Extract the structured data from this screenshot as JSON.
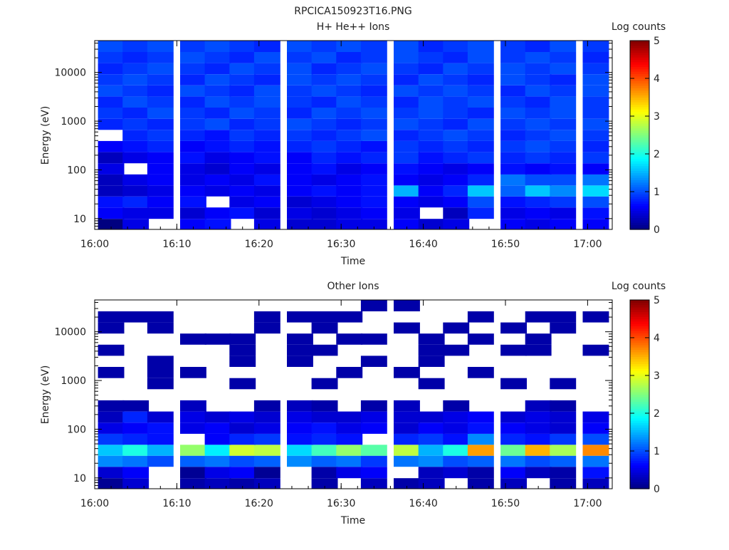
{
  "figure_title": "RPCICA150923T16.PNG",
  "colorbar_label": "Log counts",
  "colorbar_ticks": [
    "0",
    "1",
    "2",
    "3",
    "4",
    "5"
  ],
  "chart_data": [
    {
      "type": "heatmap",
      "title": "H+ He++ Ions",
      "xlabel": "Time",
      "ylabel": "Energy (eV)",
      "x_tick_labels": [
        "16:00",
        "16:10",
        "16:20",
        "16:30",
        "16:40",
        "16:50",
        "17:00"
      ],
      "x_range": [
        "16:00",
        "17:03"
      ],
      "y_scale": "log",
      "y_tick_labels": [
        "10",
        "100",
        "1000",
        "10000"
      ],
      "y_range": [
        6,
        45000
      ],
      "z_label": "Log counts",
      "z_range": [
        0,
        5
      ],
      "time_bins": [
        "16:02",
        "16:05",
        "16:08",
        "16:12",
        "16:15",
        "16:18",
        "16:21",
        "16:25",
        "16:28",
        "16:31",
        "16:34",
        "16:38",
        "16:41",
        "16:44",
        "16:47",
        "16:51",
        "16:54",
        "16:57",
        "17:01"
      ],
      "energy_bins_eV": [
        7.5,
        13,
        22,
        37,
        62,
        105,
        178,
        300,
        510,
        860,
        1460,
        2470,
        4180,
        7070,
        11950,
        20200,
        34200
      ],
      "z_values": [
        [
          0.0,
          0.5,
          null,
          0.6,
          0.7,
          null,
          0.5,
          0.4,
          0.4,
          0.5,
          0.5,
          0.6,
          0.4,
          0.5,
          null,
          0.6,
          0.5,
          0.6,
          0.6
        ],
        [
          0.6,
          0.5,
          0.5,
          0.4,
          0.6,
          0.7,
          0.4,
          0.5,
          0.4,
          0.5,
          0.6,
          0.5,
          null,
          0.3,
          0.8,
          0.5,
          0.6,
          0.5,
          0.7
        ],
        [
          0.7,
          0.8,
          0.6,
          0.7,
          null,
          0.5,
          0.6,
          0.4,
          0.5,
          0.6,
          0.7,
          0.6,
          0.5,
          0.6,
          1.0,
          0.7,
          0.8,
          0.9,
          1.0
        ],
        [
          0.3,
          0.4,
          0.5,
          0.6,
          0.5,
          0.6,
          0.5,
          0.6,
          0.7,
          0.6,
          0.7,
          1.5,
          0.6,
          0.8,
          1.6,
          1.1,
          1.6,
          1.3,
          1.7
        ],
        [
          0.3,
          0.5,
          0.6,
          0.5,
          0.6,
          0.5,
          0.7,
          0.6,
          0.5,
          0.6,
          0.7,
          0.6,
          0.5,
          0.6,
          0.8,
          1.2,
          1.0,
          1.0,
          1.2
        ],
        [
          0.5,
          null,
          0.6,
          0.5,
          0.4,
          0.6,
          0.5,
          0.6,
          0.7,
          0.5,
          0.6,
          0.7,
          0.6,
          0.5,
          0.6,
          0.7,
          0.6,
          0.7,
          0.6
        ],
        [
          0.3,
          0.5,
          0.6,
          0.7,
          0.5,
          0.6,
          0.7,
          0.6,
          0.8,
          0.7,
          0.8,
          0.9,
          0.7,
          0.8,
          0.9,
          0.8,
          0.9,
          0.8,
          0.9
        ],
        [
          0.6,
          0.7,
          0.8,
          0.6,
          0.7,
          0.8,
          0.7,
          0.8,
          0.9,
          0.8,
          0.7,
          0.9,
          0.8,
          0.9,
          0.8,
          0.9,
          1.0,
          0.9,
          0.8
        ],
        [
          null,
          0.8,
          0.9,
          0.8,
          0.7,
          0.9,
          0.8,
          0.9,
          0.8,
          0.9,
          1.0,
          0.8,
          0.9,
          1.0,
          0.9,
          0.8,
          0.9,
          1.0,
          0.9
        ],
        [
          0.8,
          0.9,
          0.8,
          0.9,
          1.0,
          0.8,
          0.9,
          1.0,
          0.9,
          0.8,
          0.9,
          1.0,
          0.9,
          0.8,
          1.0,
          0.9,
          1.0,
          0.9,
          1.0
        ],
        [
          0.9,
          0.8,
          1.0,
          0.9,
          0.8,
          1.0,
          0.9,
          0.8,
          1.0,
          0.9,
          1.0,
          0.9,
          1.0,
          0.9,
          0.8,
          1.0,
          0.9,
          1.0,
          0.9
        ],
        [
          0.8,
          1.0,
          0.9,
          0.8,
          1.0,
          0.9,
          1.0,
          0.9,
          0.8,
          1.0,
          0.9,
          0.8,
          1.0,
          0.9,
          1.0,
          0.9,
          0.8,
          1.0,
          0.9
        ],
        [
          1.0,
          0.9,
          0.8,
          1.0,
          0.9,
          0.8,
          1.0,
          0.9,
          1.0,
          0.9,
          0.8,
          1.0,
          0.9,
          1.0,
          0.9,
          0.8,
          1.0,
          0.9,
          1.0
        ],
        [
          0.9,
          1.0,
          0.9,
          0.8,
          1.0,
          0.9,
          0.8,
          1.0,
          0.9,
          1.0,
          0.9,
          0.8,
          1.0,
          0.9,
          0.8,
          1.0,
          0.9,
          0.8,
          1.0
        ],
        [
          0.8,
          0.9,
          1.0,
          0.9,
          0.8,
          1.0,
          0.9,
          1.0,
          0.8,
          0.9,
          1.0,
          0.9,
          0.8,
          1.0,
          0.9,
          1.0,
          0.9,
          1.0,
          0.9
        ],
        [
          0.9,
          0.8,
          0.9,
          1.0,
          0.9,
          0.8,
          1.0,
          0.9,
          1.0,
          0.8,
          0.9,
          1.0,
          0.9,
          0.8,
          1.0,
          0.9,
          1.0,
          0.9,
          0.8
        ],
        [
          1.0,
          0.9,
          1.0,
          0.9,
          1.0,
          0.9,
          0.8,
          1.0,
          0.9,
          1.0,
          0.9,
          1.0,
          0.8,
          0.9,
          1.0,
          0.9,
          0.8,
          1.0,
          0.9
        ]
      ]
    },
    {
      "type": "heatmap",
      "title": "Other Ions",
      "xlabel": "Time",
      "ylabel": "Energy (eV)",
      "x_tick_labels": [
        "16:00",
        "16:10",
        "16:20",
        "16:30",
        "16:40",
        "16:50",
        "17:00"
      ],
      "x_range": [
        "16:00",
        "17:03"
      ],
      "y_scale": "log",
      "y_tick_labels": [
        "10",
        "100",
        "1000",
        "10000"
      ],
      "y_range": [
        6,
        45000
      ],
      "z_label": "Log counts",
      "z_range": [
        0,
        5
      ],
      "time_bins": [
        "16:02",
        "16:05",
        "16:08",
        "16:12",
        "16:15",
        "16:18",
        "16:21",
        "16:25",
        "16:28",
        "16:31",
        "16:34",
        "16:38",
        "16:41",
        "16:44",
        "16:47",
        "16:51",
        "16:54",
        "16:57",
        "17:01"
      ],
      "energy_bins_eV": [
        7.5,
        13,
        22,
        37,
        62,
        105,
        178,
        300,
        510,
        860,
        1460,
        2470,
        4180,
        7070,
        11950,
        20200,
        34200
      ],
      "z_values": [
        [
          0.1,
          0.4,
          null,
          0.2,
          0.3,
          0.2,
          0.3,
          null,
          0.2,
          null,
          0.3,
          0.2,
          0.3,
          null,
          0.2,
          0.3,
          null,
          0.2,
          0.3
        ],
        [
          0.4,
          0.6,
          null,
          0.1,
          0.5,
          0.6,
          0.1,
          null,
          0.2,
          0.5,
          0.6,
          null,
          0.3,
          0.4,
          0.2,
          0.6,
          0.3,
          0.2,
          0.7
        ],
        [
          1.3,
          1.2,
          1.0,
          1.1,
          1.2,
          1.0,
          1.1,
          1.3,
          1.1,
          1.2,
          0.9,
          1.2,
          1.3,
          1.0,
          1.1,
          1.2,
          1.0,
          1.1,
          1.2
        ],
        [
          1.6,
          2.0,
          1.5,
          2.6,
          1.8,
          2.9,
          2.8,
          1.7,
          2.2,
          2.6,
          2.3,
          2.8,
          1.5,
          2.0,
          3.6,
          2.4,
          3.5,
          2.7,
          3.7
        ],
        [
          0.9,
          0.8,
          0.7,
          null,
          0.6,
          0.8,
          0.9,
          0.7,
          0.8,
          0.7,
          null,
          0.8,
          0.9,
          0.7,
          1.3,
          0.8,
          0.7,
          0.9,
          1.0
        ],
        [
          0.5,
          0.6,
          0.7,
          0.5,
          0.6,
          0.4,
          0.5,
          0.6,
          0.7,
          0.5,
          0.6,
          0.4,
          0.6,
          0.5,
          0.7,
          0.6,
          0.5,
          0.4,
          0.6
        ],
        [
          0.3,
          0.8,
          0.4,
          0.5,
          0.4,
          0.5,
          0.4,
          0.5,
          0.4,
          0.4,
          0.5,
          0.4,
          0.4,
          0.5,
          0.6,
          0.4,
          0.5,
          0.4,
          0.5
        ],
        [
          0.2,
          0.2,
          null,
          0.3,
          null,
          null,
          0.2,
          0.3,
          0.2,
          null,
          0.2,
          0.3,
          null,
          0.2,
          null,
          null,
          0.3,
          0.2,
          null
        ],
        [
          null,
          null,
          null,
          null,
          null,
          null,
          null,
          null,
          null,
          null,
          null,
          null,
          null,
          null,
          null,
          null,
          null,
          null,
          null
        ],
        [
          null,
          null,
          0.2,
          null,
          null,
          0.2,
          null,
          null,
          0.2,
          null,
          null,
          null,
          0.2,
          null,
          null,
          0.2,
          null,
          0.2,
          null
        ],
        [
          0.2,
          null,
          0.2,
          0.2,
          null,
          null,
          null,
          null,
          null,
          0.2,
          null,
          0.2,
          null,
          null,
          0.2,
          null,
          null,
          null,
          null
        ],
        [
          null,
          null,
          0.2,
          null,
          null,
          0.2,
          null,
          0.2,
          null,
          null,
          0.2,
          null,
          0.2,
          null,
          null,
          null,
          null,
          null,
          null
        ],
        [
          0.2,
          null,
          null,
          null,
          null,
          0.2,
          null,
          0.2,
          0.2,
          null,
          null,
          null,
          0.2,
          0.2,
          null,
          0.2,
          0.2,
          null,
          0.2
        ],
        [
          null,
          null,
          null,
          0.2,
          0.2,
          0.2,
          null,
          0.2,
          null,
          0.2,
          0.2,
          null,
          0.2,
          null,
          0.2,
          null,
          0.2,
          null,
          null
        ],
        [
          0.2,
          null,
          0.2,
          null,
          null,
          null,
          0.2,
          null,
          0.2,
          null,
          null,
          0.2,
          null,
          0.2,
          null,
          0.2,
          null,
          0.2,
          null
        ],
        [
          0.2,
          0.2,
          0.2,
          null,
          null,
          null,
          0.2,
          0.2,
          0.2,
          0.2,
          null,
          null,
          null,
          null,
          0.2,
          null,
          0.2,
          0.2,
          0.2
        ],
        [
          null,
          null,
          null,
          null,
          null,
          null,
          null,
          null,
          null,
          null,
          0.2,
          0.2,
          null,
          null,
          null,
          null,
          null,
          null,
          null
        ]
      ]
    }
  ]
}
